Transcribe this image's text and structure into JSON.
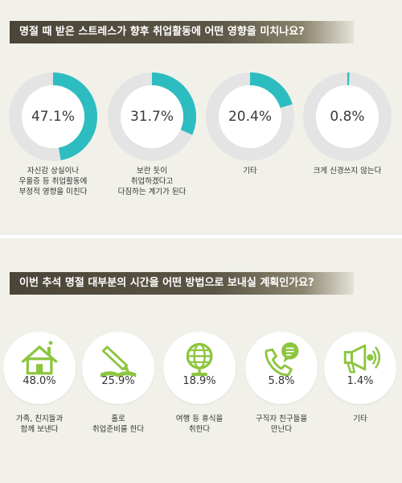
{
  "colors": {
    "accent": "#2dbdc0",
    "track": "#e4e4e4",
    "icon": "#8cc63f"
  },
  "chart_data": [
    {
      "type": "pie",
      "title": "명절 때 받은 스트레스가 향후 취업활동에 어떤 영향을 미치나요?",
      "categories": [
        "자신감 상실이나\n우울증 등 취업활동에\n부정적 영향을 미친다",
        "보란 듯이\n취업하겠다고\n다짐하는 계기가 된다",
        "기타",
        "크게 신경쓰지 않는다"
      ],
      "values": [
        47.1,
        31.7,
        20.4,
        0.8
      ],
      "value_labels": [
        "47.1%",
        "31.7%",
        "20.4%",
        "0.8%"
      ]
    },
    {
      "type": "bar",
      "title": "이번 추석 명절 대부분의 시간을 어떤 방법으로 보내실 계획인가요?",
      "categories": [
        "가족, 친지들과\n함께 보낸다",
        "홀로\n취업준비를 한다",
        "여행 등 휴식을\n취한다",
        "구직자 친구들을\n만난다",
        "기타"
      ],
      "icons": [
        "house-icon",
        "pencil-book-icon",
        "globe-icon",
        "phone-chat-icon",
        "megaphone-icon"
      ],
      "values": [
        48.0,
        25.9,
        18.9,
        5.8,
        1.4
      ],
      "value_labels": [
        "48.0%",
        "25.9%",
        "18.9%",
        "5.8%",
        "1.4%"
      ]
    }
  ]
}
